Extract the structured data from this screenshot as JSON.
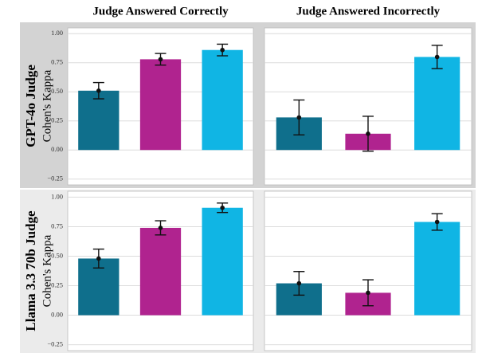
{
  "chart_data": [
    {
      "type": "bar",
      "title": "Judge Answered Correctly",
      "row_label": "GPT-4o Judge",
      "ylabel": "Cohen's Kappa",
      "categories": [
        null,
        null,
        null
      ],
      "values": [
        0.51,
        0.78,
        0.86
      ],
      "errors": [
        0.07,
        0.05,
        0.05
      ],
      "colors": [
        "#0f6f8c",
        "#b0238f",
        "#10b5e4"
      ],
      "ylim": [
        -0.3,
        1.05
      ],
      "yticks": [
        {
          "value": 1,
          "label": "1.00"
        },
        {
          "value": 0.75,
          "label": "0.75"
        },
        {
          "value": 0.5,
          "label": "0.50"
        },
        {
          "value": 0.25,
          "label": "0.25"
        },
        {
          "value": 0,
          "label": "0.00"
        },
        {
          "value": -0.25,
          "label": "−0.25"
        }
      ],
      "grid": true
    },
    {
      "type": "bar",
      "title": "Judge Answered Incorrectly",
      "categories": [
        null,
        null,
        null
      ],
      "values": [
        0.28,
        0.14,
        0.8
      ],
      "errors": [
        0.15,
        0.15,
        0.1
      ],
      "colors": [
        "#0f6f8c",
        "#b0238f",
        "#10b5e4"
      ],
      "ylim": [
        -0.3,
        1.05
      ],
      "yticks": [
        1,
        0.75,
        0.5,
        0.25,
        0,
        -0.25
      ],
      "grid": true
    },
    {
      "type": "bar",
      "row_label": "Llama 3.3 70b Judge",
      "ylabel": "Cohen's Kappa",
      "categories": [
        null,
        null,
        null
      ],
      "values": [
        0.48,
        0.74,
        0.91
      ],
      "errors": [
        0.08,
        0.06,
        0.04
      ],
      "colors": [
        "#0f6f8c",
        "#b0238f",
        "#10b5e4"
      ],
      "ylim": [
        -0.3,
        1.05
      ],
      "yticks": [
        {
          "value": 1,
          "label": "1.00"
        },
        {
          "value": 0.75,
          "label": "0.75"
        },
        {
          "value": 0.5,
          "label": "0.50"
        },
        {
          "value": 0.25,
          "label": "0.25"
        },
        {
          "value": 0,
          "label": "0.00"
        },
        {
          "value": -0.25,
          "label": "−0.25"
        }
      ],
      "grid": true
    },
    {
      "type": "bar",
      "categories": [
        null,
        null,
        null
      ],
      "values": [
        0.27,
        0.19,
        0.79
      ],
      "errors": [
        0.1,
        0.11,
        0.07
      ],
      "colors": [
        "#0f6f8c",
        "#b0238f",
        "#10b5e4"
      ],
      "ylim": [
        -0.3,
        1.05
      ],
      "yticks": [
        1,
        0.75,
        0.5,
        0.25,
        0,
        -0.25
      ],
      "grid": true
    }
  ]
}
